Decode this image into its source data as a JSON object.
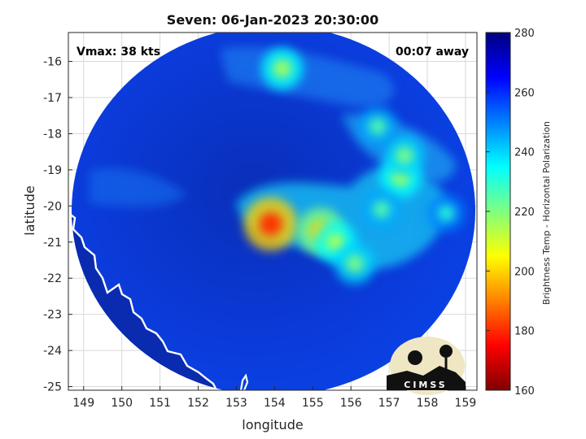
{
  "title": "Seven: 06-Jan-2023 20:30:00",
  "vmax_label": "Vmax: 38 kts",
  "time_away_label": "00:07 away",
  "xlabel": "longitude",
  "ylabel": "latitude",
  "x_ticks": [
    "149",
    "150",
    "151",
    "152",
    "153",
    "154",
    "155",
    "156",
    "157",
    "158",
    "159"
  ],
  "y_ticks": [
    "-16",
    "-17",
    "-18",
    "-19",
    "-20",
    "-21",
    "-22",
    "-23",
    "-24",
    "-25"
  ],
  "colorbar": {
    "label": "Brightness Temp - Horizontal Polarization",
    "ticks": [
      "280",
      "260",
      "240",
      "220",
      "200",
      "180",
      "160"
    ],
    "colormap": "jet",
    "range": [
      160,
      280
    ]
  },
  "logo_text": "CIMSS",
  "colors": {
    "background_cold": "#0a2fd0",
    "coastline": "#ffffff",
    "grid": "#d9d9d9"
  },
  "chart_data": {
    "type": "heatmap",
    "xlim": [
      148.6,
      159.3
    ],
    "ylim": [
      -25.1,
      -15.2
    ],
    "grid": true,
    "hot_spots": [
      {
        "lon": 153.9,
        "lat": -20.5,
        "tb": 180
      },
      {
        "lon": 155.2,
        "lat": -20.7,
        "tb": 200
      },
      {
        "lon": 155.6,
        "lat": -21.0,
        "tb": 215
      },
      {
        "lon": 156.1,
        "lat": -21.6,
        "tb": 220
      },
      {
        "lon": 157.3,
        "lat": -19.2,
        "tb": 215
      },
      {
        "lon": 157.4,
        "lat": -18.6,
        "tb": 220
      },
      {
        "lon": 154.2,
        "lat": -16.2,
        "tb": 215
      },
      {
        "lon": 156.8,
        "lat": -20.1,
        "tb": 225
      },
      {
        "lon": 156.7,
        "lat": -17.8,
        "tb": 225
      },
      {
        "lon": 158.5,
        "lat": -20.2,
        "tb": 230
      }
    ]
  }
}
